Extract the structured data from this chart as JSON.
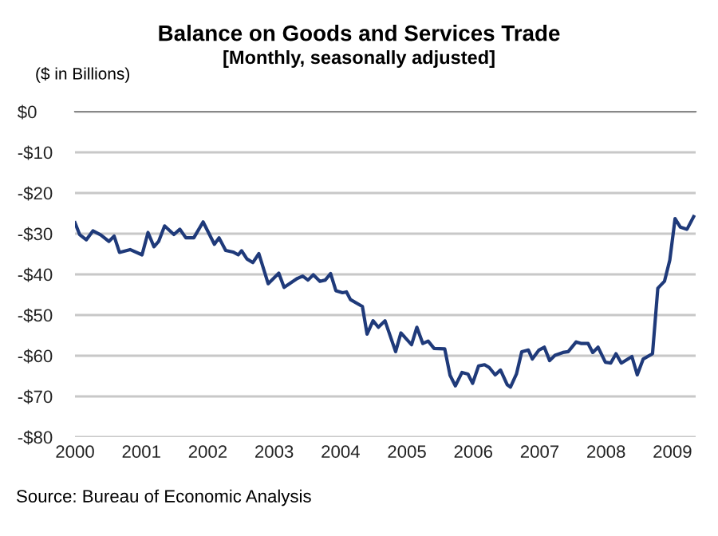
{
  "chart_data": {
    "type": "line",
    "title": "Balance on Goods and Services Trade",
    "subtitle": "[Monthly, seasonally adjusted]",
    "ylabel": "($ in Billions)",
    "annotations": [
      "Source: Bureau of Economic Analysis"
    ],
    "x": [
      2000.0,
      2000.07,
      2000.17,
      2000.27,
      2000.39,
      2000.51,
      2000.59,
      2000.67,
      2000.83,
      2001.01,
      2001.1,
      2001.19,
      2001.26,
      2001.35,
      2001.49,
      2001.58,
      2001.67,
      2001.79,
      2001.93,
      2002.1,
      2002.17,
      2002.27,
      2002.38,
      2002.46,
      2002.51,
      2002.59,
      2002.68,
      2002.77,
      2002.91,
      2003.07,
      2003.15,
      2003.35,
      2003.43,
      2003.51,
      2003.59,
      2003.69,
      2003.77,
      2003.85,
      2003.93,
      2004.03,
      2004.09,
      2004.15,
      2004.33,
      2004.4,
      2004.49,
      2004.57,
      2004.67,
      2004.83,
      2004.91,
      2005.07,
      2005.15,
      2005.24,
      2005.32,
      2005.41,
      2005.57,
      2005.65,
      2005.73,
      2005.83,
      2005.92,
      2005.99,
      2006.08,
      2006.17,
      2006.24,
      2006.33,
      2006.41,
      2006.51,
      2006.56,
      2006.65,
      2006.73,
      2006.83,
      2006.89,
      2006.99,
      2007.07,
      2007.15,
      2007.23,
      2007.35,
      2007.43,
      2007.55,
      2007.63,
      2007.73,
      2007.8,
      2007.88,
      2007.99,
      2008.07,
      2008.15,
      2008.23,
      2008.39,
      2008.47,
      2008.56,
      2008.7,
      2008.78,
      2008.88,
      2008.96,
      2009.04,
      2009.12,
      2009.22,
      2009.32
    ],
    "series": [
      {
        "color": "#1f3a7a",
        "values": [
          -27.3,
          -30.2,
          -31.5,
          -29.3,
          -30.3,
          -31.9,
          -30.6,
          -34.6,
          -33.9,
          -35.2,
          -29.7,
          -33.2,
          -31.9,
          -28.1,
          -30.2,
          -28.9,
          -31,
          -31,
          -27.1,
          -32.6,
          -31,
          -34.1,
          -34.5,
          -35.2,
          -34.2,
          -36.2,
          -37.1,
          -34.9,
          -42.3,
          -39.7,
          -43.2,
          -41,
          -40.4,
          -41.4,
          -40.1,
          -41.7,
          -41.4,
          -39.8,
          -44,
          -44.5,
          -44.3,
          -46.2,
          -47.9,
          -54.7,
          -51.4,
          -53,
          -51.4,
          -59,
          -54.4,
          -57.3,
          -53,
          -57,
          -56.4,
          -58.2,
          -58.3,
          -64.8,
          -67.4,
          -64.1,
          -64.5,
          -66.8,
          -62.5,
          -62.2,
          -62.9,
          -64.7,
          -63.5,
          -67.1,
          -67.7,
          -64.5,
          -59,
          -58.6,
          -60.8,
          -58.6,
          -57.9,
          -61.2,
          -59.9,
          -59.2,
          -59,
          -56.6,
          -57,
          -57,
          -59.2,
          -57.9,
          -61.6,
          -61.8,
          -59.5,
          -61.8,
          -60.2,
          -64.7,
          -60.8,
          -59.5,
          -43.4,
          -41.7,
          -36.5,
          -26.3,
          -28.4,
          -28.9,
          -25.8
        ]
      }
    ],
    "xlim": [
      2000,
      2009.35
    ],
    "ylim": [
      -80,
      0
    ],
    "xticks": [
      2000,
      2001,
      2002,
      2003,
      2004,
      2005,
      2006,
      2007,
      2008,
      2009
    ],
    "yticks": [
      {
        "value": 0,
        "label": "$0"
      },
      {
        "value": -10,
        "label": "-$10"
      },
      {
        "value": -20,
        "label": "-$20"
      },
      {
        "value": -30,
        "label": "-$30"
      },
      {
        "value": -40,
        "label": "-$40"
      },
      {
        "value": -50,
        "label": "-$50"
      },
      {
        "value": -60,
        "label": "-$60"
      },
      {
        "value": -70,
        "label": "-$70"
      },
      {
        "value": -80,
        "label": "-$80"
      }
    ],
    "grid": "y",
    "marker": "none",
    "line_style": "solid"
  }
}
